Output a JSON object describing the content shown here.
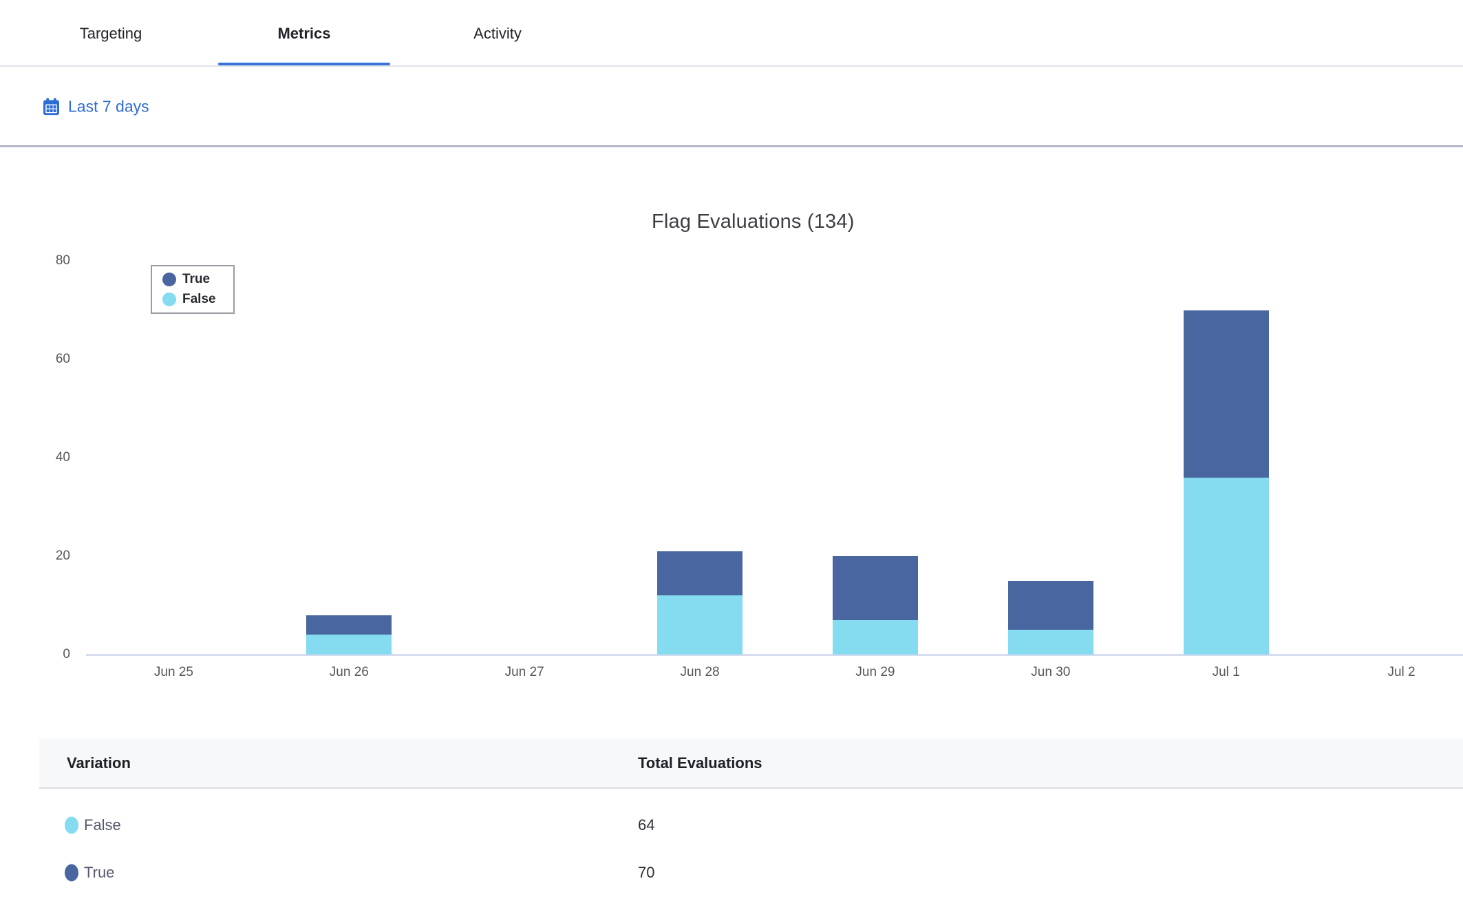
{
  "tabs": {
    "items": [
      {
        "label": "Targeting",
        "active": false
      },
      {
        "label": "Metrics",
        "active": true
      },
      {
        "label": "Activity",
        "active": false
      }
    ]
  },
  "filter": {
    "date_range_label": "Last 7 days"
  },
  "colors": {
    "accent_blue": "#2d6cd2",
    "tab_underline": "#3a73da",
    "true_series": "#4a66a0",
    "false_series": "#85dbf0"
  },
  "chart_data": {
    "type": "bar",
    "stacked": true,
    "title": "Flag Evaluations (134)",
    "total_evaluations": 134,
    "categories": [
      "Jun 25",
      "Jun 26",
      "Jun 27",
      "Jun 28",
      "Jun 29",
      "Jun 30",
      "Jul 1",
      "Jul 2"
    ],
    "series": [
      {
        "name": "True",
        "color": "#4a66a0",
        "values": [
          0,
          4,
          0,
          9,
          13,
          10,
          34,
          0
        ]
      },
      {
        "name": "False",
        "color": "#85dbf0",
        "values": [
          0,
          4,
          0,
          12,
          7,
          5,
          36,
          0
        ]
      }
    ],
    "ylim": [
      0,
      80
    ],
    "y_ticks": [
      0,
      20,
      40,
      60,
      80
    ],
    "grid": false,
    "legend_position": "top-left"
  },
  "table": {
    "columns": [
      "Variation",
      "Total Evaluations"
    ],
    "rows": [
      {
        "label": "False",
        "color": "#85dbf0",
        "total": "64"
      },
      {
        "label": "True",
        "color": "#4a66a0",
        "total": "70"
      }
    ]
  }
}
